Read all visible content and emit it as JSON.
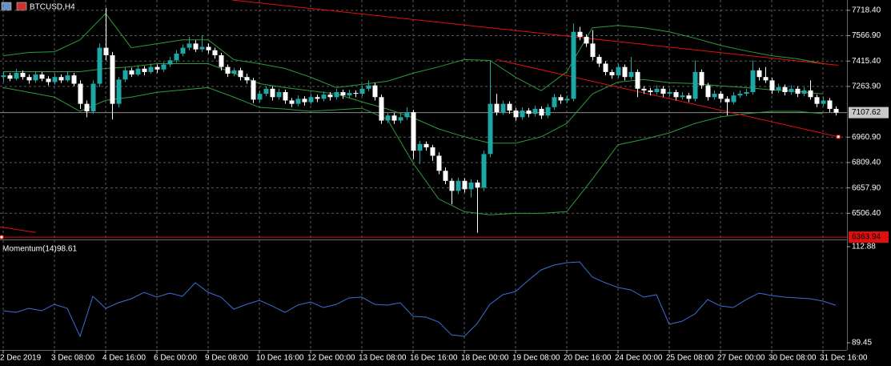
{
  "chart_data": {
    "type": "candlestick",
    "title": "BTCUSD,H4",
    "colors": {
      "up": "#1fa7a5",
      "down": "#ffffff",
      "bands": "#2e9a3a",
      "trendline": "#e01010",
      "grid": "#5a5a5a",
      "current": "#8a8a8a"
    },
    "ylim": [
      6350,
      7780
    ],
    "yticks": [
      {
        "value": 7718.4,
        "label": "7718.40"
      },
      {
        "value": 7566.9,
        "label": "7566.90"
      },
      {
        "value": 7415.4,
        "label": "7415.40"
      },
      {
        "value": 7263.9,
        "label": "7263.90"
      },
      {
        "value": 6960.9,
        "label": "6960.90"
      },
      {
        "value": 6809.4,
        "label": "6809.40"
      },
      {
        "value": 6657.9,
        "label": "6657.90"
      },
      {
        "value": 6506.4,
        "label": "6506.40"
      }
    ],
    "current_price": {
      "value": 7107.62,
      "label": "7107.62"
    },
    "level": {
      "value": 6363.94,
      "label": "6363.94"
    },
    "x_ticks": [
      {
        "value": 0,
        "label": "2 Dec 2019"
      },
      {
        "value": 8,
        "label": "3 Dec 08:00"
      },
      {
        "value": 16,
        "label": "4 Dec 16:00"
      },
      {
        "value": 24,
        "label": "6 Dec 00:00"
      },
      {
        "value": 32,
        "label": "9 Dec 08:00"
      },
      {
        "value": 40,
        "label": "10 Dec 16:00"
      },
      {
        "value": 48,
        "label": "12 Dec 00:00"
      },
      {
        "value": 56,
        "label": "13 Dec 08:00"
      },
      {
        "value": 64,
        "label": "16 Dec 16:00"
      },
      {
        "value": 72,
        "label": "18 Dec 00:00"
      },
      {
        "value": 80,
        "label": "19 Dec 08:00"
      },
      {
        "value": 88,
        "label": "20 Dec 16:00"
      },
      {
        "value": 96,
        "label": "24 Dec 00:00"
      },
      {
        "value": 104,
        "label": "25 Dec 08:00"
      },
      {
        "value": 112,
        "label": "27 Dec 00:00"
      },
      {
        "value": 120,
        "label": "30 Dec 08:00"
      },
      {
        "value": 128,
        "label": "31 Dec 16:00"
      }
    ],
    "candles": [
      [
        7320,
        7350,
        7290,
        7330
      ],
      [
        7330,
        7345,
        7295,
        7310
      ],
      [
        7310,
        7370,
        7300,
        7345
      ],
      [
        7345,
        7360,
        7305,
        7320
      ],
      [
        7320,
        7335,
        7280,
        7300
      ],
      [
        7300,
        7350,
        7285,
        7335
      ],
      [
        7335,
        7350,
        7295,
        7310
      ],
      [
        7310,
        7325,
        7270,
        7290
      ],
      [
        7290,
        7340,
        7275,
        7320
      ],
      [
        7320,
        7335,
        7285,
        7300
      ],
      [
        7300,
        7350,
        7290,
        7330
      ],
      [
        7330,
        7345,
        7265,
        7280
      ],
      [
        7280,
        7300,
        7130,
        7160
      ],
      [
        7160,
        7180,
        7080,
        7115
      ],
      [
        7115,
        7300,
        7100,
        7280
      ],
      [
        7280,
        7520,
        7260,
        7495
      ],
      [
        7495,
        7733,
        7420,
        7450
      ],
      [
        7450,
        7470,
        7067,
        7160
      ],
      [
        7160,
        7320,
        7140,
        7305
      ],
      [
        7305,
        7380,
        7290,
        7360
      ],
      [
        7360,
        7375,
        7320,
        7335
      ],
      [
        7335,
        7390,
        7325,
        7370
      ],
      [
        7370,
        7385,
        7330,
        7350
      ],
      [
        7350,
        7400,
        7340,
        7380
      ],
      [
        7380,
        7395,
        7345,
        7365
      ],
      [
        7365,
        7410,
        7350,
        7395
      ],
      [
        7395,
        7440,
        7380,
        7420
      ],
      [
        7420,
        7480,
        7405,
        7460
      ],
      [
        7460,
        7515,
        7445,
        7495
      ],
      [
        7495,
        7560,
        7480,
        7520
      ],
      [
        7520,
        7540,
        7470,
        7485
      ],
      [
        7485,
        7570,
        7470,
        7500
      ],
      [
        7500,
        7520,
        7460,
        7480
      ],
      [
        7480,
        7495,
        7430,
        7450
      ],
      [
        7450,
        7465,
        7360,
        7380
      ],
      [
        7380,
        7395,
        7320,
        7340
      ],
      [
        7340,
        7375,
        7325,
        7360
      ],
      [
        7360,
        7375,
        7300,
        7320
      ],
      [
        7320,
        7340,
        7280,
        7300
      ],
      [
        7300,
        7315,
        7165,
        7185
      ],
      [
        7185,
        7240,
        7170,
        7220
      ],
      [
        7220,
        7265,
        7205,
        7250
      ],
      [
        7250,
        7265,
        7180,
        7200
      ],
      [
        7200,
        7250,
        7185,
        7230
      ],
      [
        7230,
        7245,
        7160,
        7180
      ],
      [
        7180,
        7195,
        7140,
        7160
      ],
      [
        7160,
        7210,
        7145,
        7190
      ],
      [
        7190,
        7205,
        7150,
        7170
      ],
      [
        7170,
        7220,
        7155,
        7200
      ],
      [
        7200,
        7215,
        7170,
        7190
      ],
      [
        7190,
        7235,
        7175,
        7215
      ],
      [
        7215,
        7230,
        7180,
        7200
      ],
      [
        7200,
        7250,
        7185,
        7230
      ],
      [
        7230,
        7245,
        7190,
        7210
      ],
      [
        7210,
        7245,
        7195,
        7225
      ],
      [
        7225,
        7240,
        7200,
        7220
      ],
      [
        7220,
        7270,
        7205,
        7250
      ],
      [
        7250,
        7300,
        7235,
        7270
      ],
      [
        7270,
        7285,
        7180,
        7200
      ],
      [
        7200,
        7215,
        7040,
        7060
      ],
      [
        7060,
        7110,
        7045,
        7090
      ],
      [
        7090,
        7105,
        7040,
        7060
      ],
      [
        7060,
        7100,
        7045,
        7080
      ],
      [
        7080,
        7140,
        7065,
        7110
      ],
      [
        7110,
        7125,
        6830,
        6880
      ],
      [
        6880,
        6940,
        6800,
        6920
      ],
      [
        6920,
        6935,
        6880,
        6900
      ],
      [
        6900,
        6915,
        6820,
        6850
      ],
      [
        6850,
        6870,
        6740,
        6760
      ],
      [
        6760,
        6780,
        6680,
        6700
      ],
      [
        6700,
        6715,
        6560,
        6640
      ],
      [
        6640,
        6720,
        6620,
        6700
      ],
      [
        6700,
        6715,
        6630,
        6650
      ],
      [
        6650,
        6710,
        6600,
        6690
      ],
      [
        6690,
        6705,
        6390,
        6660
      ],
      [
        6660,
        6880,
        6640,
        6860
      ],
      [
        6860,
        7420,
        6840,
        7160
      ],
      [
        7160,
        7220,
        7090,
        7110
      ],
      [
        7110,
        7180,
        7095,
        7160
      ],
      [
        7160,
        7175,
        7100,
        7120
      ],
      [
        7120,
        7135,
        7060,
        7080
      ],
      [
        7080,
        7140,
        7065,
        7120
      ],
      [
        7120,
        7135,
        7080,
        7100
      ],
      [
        7100,
        7150,
        7085,
        7130
      ],
      [
        7130,
        7145,
        7070,
        7090
      ],
      [
        7090,
        7160,
        7075,
        7140
      ],
      [
        7140,
        7220,
        7125,
        7200
      ],
      [
        7200,
        7215,
        7160,
        7180
      ],
      [
        7180,
        7210,
        7165,
        7190
      ],
      [
        7190,
        7640,
        7175,
        7590
      ],
      [
        7590,
        7620,
        7540,
        7560
      ],
      [
        7560,
        7575,
        7500,
        7520
      ],
      [
        7520,
        7600,
        7420,
        7440
      ],
      [
        7440,
        7455,
        7380,
        7400
      ],
      [
        7400,
        7415,
        7330,
        7350
      ],
      [
        7350,
        7365,
        7310,
        7330
      ],
      [
        7330,
        7400,
        7315,
        7380
      ],
      [
        7380,
        7395,
        7300,
        7320
      ],
      [
        7320,
        7440,
        7305,
        7350
      ],
      [
        7350,
        7365,
        7200,
        7250
      ],
      [
        7250,
        7265,
        7220,
        7240
      ],
      [
        7240,
        7255,
        7210,
        7230
      ],
      [
        7230,
        7270,
        7215,
        7250
      ],
      [
        7250,
        7265,
        7200,
        7220
      ],
      [
        7220,
        7250,
        7205,
        7230
      ],
      [
        7230,
        7245,
        7180,
        7200
      ],
      [
        7200,
        7230,
        7185,
        7210
      ],
      [
        7210,
        7225,
        7170,
        7190
      ],
      [
        7190,
        7420,
        7175,
        7350
      ],
      [
        7350,
        7365,
        7250,
        7270
      ],
      [
        7270,
        7285,
        7180,
        7200
      ],
      [
        7200,
        7240,
        7185,
        7220
      ],
      [
        7220,
        7235,
        7170,
        7190
      ],
      [
        7190,
        7205,
        7090,
        7170
      ],
      [
        7170,
        7230,
        7155,
        7210
      ],
      [
        7210,
        7240,
        7195,
        7220
      ],
      [
        7220,
        7250,
        7205,
        7230
      ],
      [
        7230,
        7420,
        7215,
        7360
      ],
      [
        7360,
        7375,
        7300,
        7320
      ],
      [
        7320,
        7380,
        7285,
        7300
      ],
      [
        7300,
        7315,
        7220,
        7240
      ],
      [
        7240,
        7280,
        7225,
        7260
      ],
      [
        7260,
        7275,
        7210,
        7230
      ],
      [
        7230,
        7270,
        7215,
        7250
      ],
      [
        7250,
        7265,
        7200,
        7220
      ],
      [
        7220,
        7260,
        7205,
        7240
      ],
      [
        7240,
        7300,
        7185,
        7200
      ],
      [
        7200,
        7215,
        7140,
        7160
      ],
      [
        7160,
        7200,
        7145,
        7180
      ],
      [
        7180,
        7195,
        7110,
        7130
      ],
      [
        7130,
        7145,
        7090,
        7107.62
      ]
    ],
    "bands": {
      "x": [
        0,
        4,
        8,
        12,
        16,
        20,
        24,
        28,
        32,
        36,
        40,
        44,
        48,
        52,
        56,
        60,
        64,
        68,
        72,
        76,
        80,
        84,
        88,
        92,
        96,
        100,
        104,
        108,
        112,
        116,
        120,
        124,
        128
      ],
      "upper": [
        7447,
        7467,
        7471,
        7542,
        7699,
        7495,
        7519,
        7542,
        7542,
        7424,
        7400,
        7371,
        7319,
        7257,
        7276,
        7295,
        7343,
        7381,
        7424,
        7419,
        7319,
        7238,
        7352,
        7614,
        7628,
        7614,
        7590,
        7552,
        7509,
        7476,
        7447,
        7429,
        7400
      ],
      "middle": [
        7352,
        7352,
        7352,
        7352,
        7371,
        7381,
        7400,
        7400,
        7400,
        7343,
        7281,
        7257,
        7238,
        7219,
        7172,
        7129,
        7077,
        7010,
        6963,
        6925,
        6925,
        6963,
        7043,
        7219,
        7290,
        7305,
        7286,
        7281,
        7267,
        7257,
        7243,
        7234,
        7219
      ],
      "lower": [
        7257,
        7229,
        7200,
        7115,
        7181,
        7200,
        7229,
        7243,
        7257,
        7200,
        7139,
        7129,
        7115,
        7124,
        7134,
        7067,
        6806,
        6592,
        6516,
        6497,
        6506,
        6506,
        6516,
        6711,
        6915,
        6948,
        6986,
        7043,
        7082,
        7101,
        7115,
        7115,
        7101
      ]
    },
    "trendlines": [
      {
        "x": [
          35.75,
          130.4
        ],
        "y": [
          7780,
          7390
        ]
      },
      {
        "x": [
          77,
          130.4
        ],
        "y": [
          7424,
          6963
        ]
      },
      {
        "x": [
          -0.5,
          5.1
        ],
        "y": [
          6425,
          6392
        ]
      }
    ],
    "momentum": {
      "name": "Momentum(14)",
      "color": "#3c6fd6",
      "ylim": [
        87.7,
        114.05
      ],
      "yticks": [
        112.88,
        89.45
      ],
      "x": [
        0,
        2,
        4,
        6,
        8,
        10,
        12,
        14,
        16,
        18,
        20,
        22,
        24,
        26,
        28,
        30,
        32,
        34,
        36,
        38,
        40,
        42,
        44,
        46,
        48,
        50,
        52,
        54,
        56,
        58,
        60,
        62,
        64,
        66,
        68,
        70,
        72,
        74,
        76,
        78,
        80,
        82,
        84,
        86,
        88,
        90,
        92,
        94,
        96,
        98,
        100,
        102,
        104,
        106,
        108,
        110,
        112,
        114,
        116,
        118,
        120,
        122,
        124,
        126,
        128,
        130
      ],
      "values": [
        97.26,
        96.87,
        97.85,
        97.26,
        98.82,
        97.85,
        91.01,
        100.78,
        97.85,
        99.21,
        100.19,
        101.75,
        100.58,
        101.56,
        100.78,
        104.09,
        101.75,
        100.58,
        97.65,
        98.82,
        99.8,
        98.43,
        96.87,
        98.63,
        99.41,
        98.04,
        98.82,
        100.39,
        100.58,
        98.82,
        98.63,
        99.21,
        95.89,
        95.7,
        94.53,
        91.4,
        91.01,
        94.14,
        98.82,
        101.17,
        101.95,
        104.68,
        107.22,
        108.39,
        108.98,
        109.17,
        105.46,
        104.09,
        102.92,
        102.34,
        100.58,
        101.17,
        93.94,
        94.72,
        96.48,
        99.99,
        98.43,
        98.04,
        99.99,
        101.56,
        100.97,
        100.58,
        100.39,
        100.19,
        99.6,
        98.61
      ]
    }
  }
}
